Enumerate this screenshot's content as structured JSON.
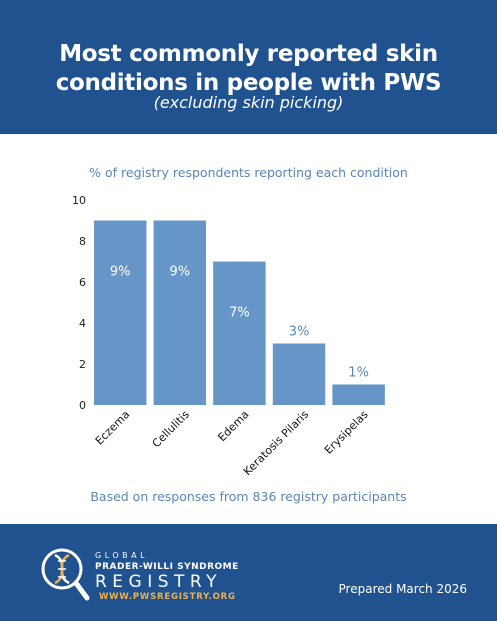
{
  "header": {
    "title_line1": "Most commonly reported skin",
    "title_line2": "conditions in people with PWS",
    "subtitle": "(excluding skin picking)"
  },
  "chart_subtitle": "% of registry respondents reporting each condition",
  "chart_data": {
    "type": "bar",
    "categories": [
      "Eczema",
      "Cellulitis",
      "Edema",
      "Keratosis Pilaris",
      "Erysipelas"
    ],
    "values": [
      9,
      9,
      7,
      3,
      1
    ],
    "data_labels": [
      "9%",
      "9%",
      "7%",
      "3%",
      "1%"
    ],
    "ylim": [
      0,
      10
    ],
    "yticks": [
      0,
      2,
      4,
      6,
      8,
      10
    ],
    "grid": false,
    "legend": "none"
  },
  "footnote": "Based on responses from 836 registry participants",
  "footer": {
    "logo_global": "GLOBAL",
    "logo_name": "PRADER-WILLI SYNDROME",
    "logo_registry": "REGISTRY",
    "logo_url": "WWW.PWSREGISTRY.ORG",
    "prepared": "Prepared March 2026"
  },
  "colors": {
    "brand_blue": "#1f528f",
    "bar": "#6596c7",
    "accent_text": "#5a86b6",
    "url_orange": "#f2b144"
  }
}
